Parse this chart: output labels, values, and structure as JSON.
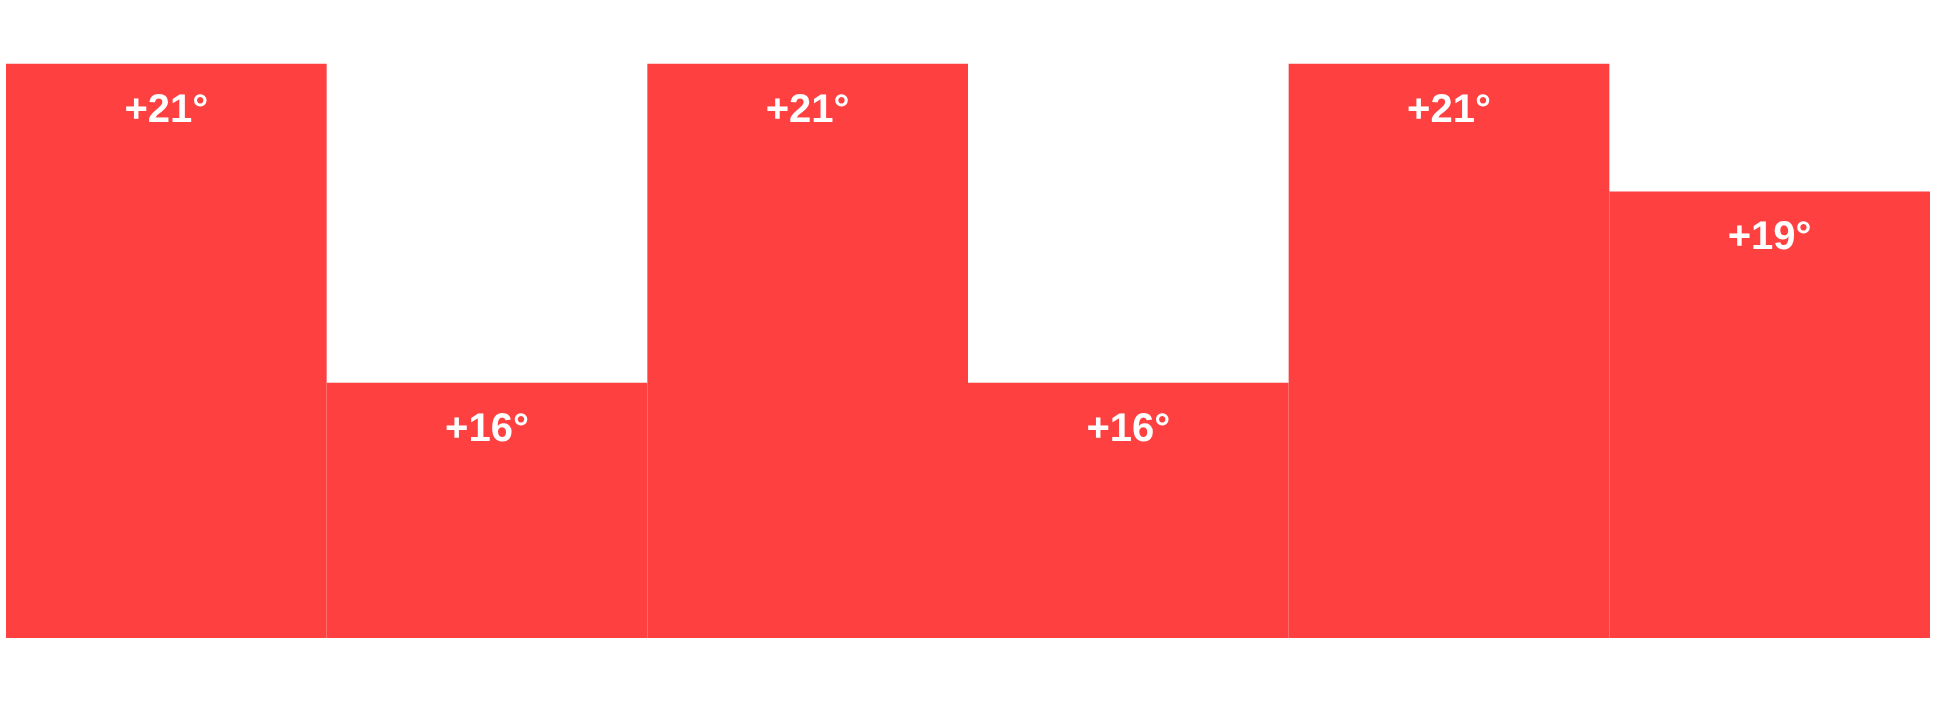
{
  "chart_data": {
    "type": "bar",
    "categories": [
      null,
      null,
      null,
      null,
      null,
      null
    ],
    "values": [
      21,
      16,
      21,
      16,
      21,
      19
    ],
    "value_labels": [
      "+21°",
      "+16°",
      "+21°",
      "+16°",
      "+21°",
      "+19°"
    ],
    "color": "#ff4040",
    "ylim": [
      12,
      22
    ]
  }
}
